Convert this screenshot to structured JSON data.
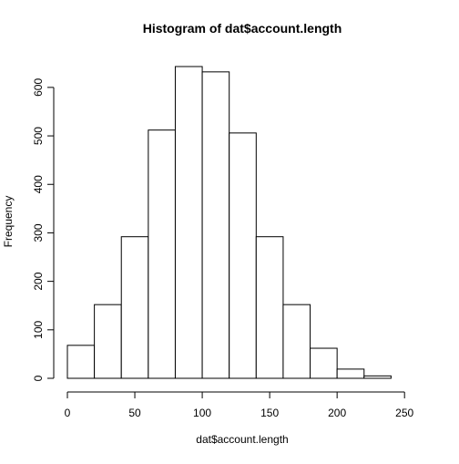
{
  "chart_data": {
    "type": "bar",
    "title": "Histogram of dat$account.length",
    "xlabel": "dat$account.length",
    "ylabel": "Frequency",
    "bins": [
      {
        "x0": 0,
        "x1": 20,
        "count": 68
      },
      {
        "x0": 20,
        "x1": 40,
        "count": 152
      },
      {
        "x0": 40,
        "x1": 60,
        "count": 292
      },
      {
        "x0": 60,
        "x1": 80,
        "count": 512
      },
      {
        "x0": 80,
        "x1": 100,
        "count": 643
      },
      {
        "x0": 100,
        "x1": 120,
        "count": 632
      },
      {
        "x0": 120,
        "x1": 140,
        "count": 506
      },
      {
        "x0": 140,
        "x1": 160,
        "count": 292
      },
      {
        "x0": 160,
        "x1": 180,
        "count": 152
      },
      {
        "x0": 180,
        "x1": 200,
        "count": 62
      },
      {
        "x0": 200,
        "x1": 220,
        "count": 19
      },
      {
        "x0": 220,
        "x1": 240,
        "count": 5
      }
    ],
    "x_ticks": [
      0,
      50,
      100,
      150,
      200,
      250
    ],
    "y_ticks": [
      0,
      100,
      200,
      300,
      400,
      500,
      600
    ],
    "xlim": [
      0,
      260
    ],
    "ylim": [
      0,
      643
    ],
    "grid": false,
    "legend": "none",
    "bar_fill": "#ffffff",
    "bar_stroke": "#000000"
  }
}
